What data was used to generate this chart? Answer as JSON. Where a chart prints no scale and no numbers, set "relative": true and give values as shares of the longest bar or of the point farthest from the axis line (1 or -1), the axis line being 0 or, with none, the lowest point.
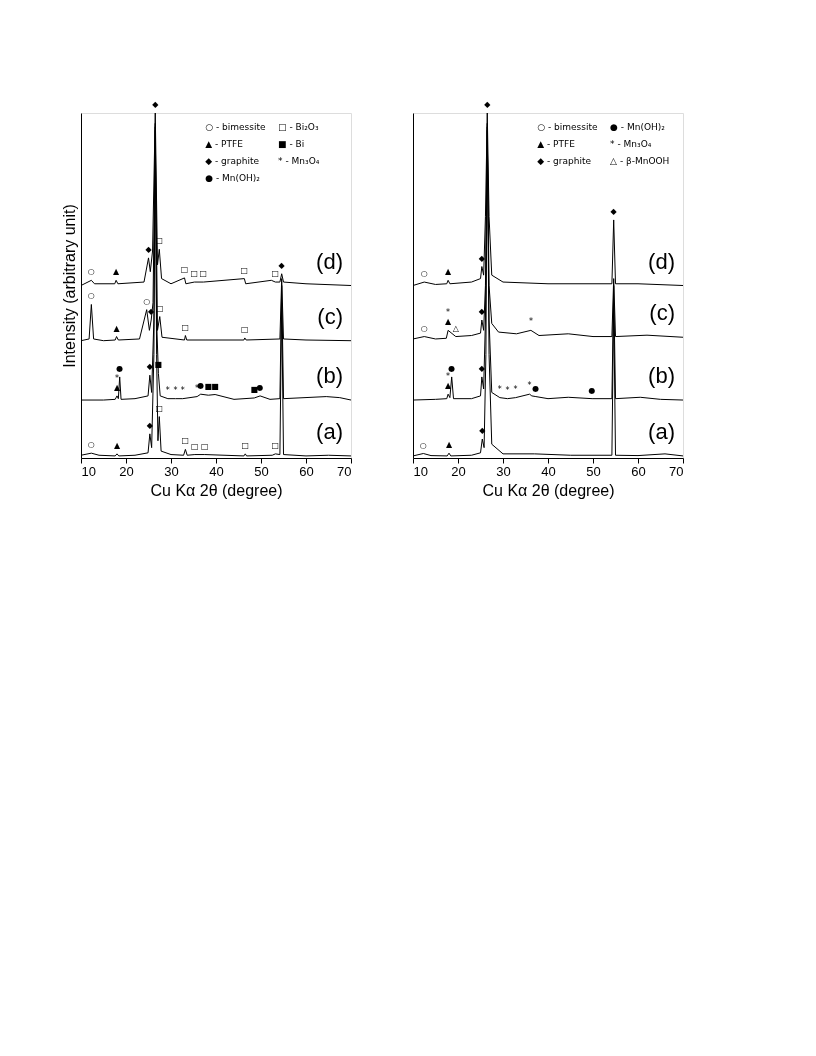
{
  "chart_data": [
    {
      "type": "line",
      "xlabel": "Cu Kα 2θ (degree)",
      "ylabel": "Intensity (arbitrary unit)",
      "relative": true,
      "xlim": [
        10,
        70
      ],
      "xticks": [
        10,
        20,
        30,
        40,
        50,
        60,
        70
      ],
      "tick_labels": "x",
      "grid": false,
      "legend": false,
      "series": [
        {
          "name": "(a)",
          "color": "#000000",
          "x": [
            10,
            12.3,
            14,
            17.6,
            18.0,
            18.4,
            22,
            24.9,
            25.3,
            25.7,
            26.2,
            26.5,
            26.8,
            27.1,
            27.4,
            27.8,
            30,
            32.8,
            33.2,
            33.6,
            35.3,
            37.5,
            46.2,
            46.5,
            46.8,
            52.5,
            53.2,
            54.2,
            54.6,
            55,
            60,
            65,
            70
          ],
          "values": [
            0.008,
            0.014,
            0.008,
            0.006,
            0.012,
            0.006,
            0.008,
            0.015,
            0.07,
            0.03,
            0.3,
            0.97,
            0.3,
            0.05,
            0.12,
            0.02,
            0.01,
            0.008,
            0.025,
            0.008,
            0.01,
            0.01,
            0.006,
            0.012,
            0.006,
            0.008,
            0.012,
            0.01,
            0.45,
            0.01,
            0.006,
            0.008,
            0.006
          ]
        },
        {
          "name": "(b)",
          "color": "#000000",
          "x": [
            10,
            15,
            17.6,
            18.0,
            18.3,
            18.6,
            18.9,
            22,
            24.9,
            25.3,
            25.7,
            26.2,
            26.5,
            26.8,
            27.2,
            27.6,
            29.3,
            31,
            32.6,
            35.8,
            36.6,
            38.3,
            39.8,
            44,
            48.5,
            49.8,
            52,
            54.2,
            54.6,
            55,
            64.5,
            67.5,
            70
          ],
          "values": [
            0.168,
            0.168,
            0.17,
            0.18,
            0.172,
            0.235,
            0.17,
            0.172,
            0.18,
            0.24,
            0.19,
            0.4,
            0.96,
            0.4,
            0.245,
            0.18,
            0.172,
            0.172,
            0.172,
            0.178,
            0.185,
            0.182,
            0.184,
            0.17,
            0.174,
            0.18,
            0.17,
            0.172,
            0.5,
            0.172,
            0.178,
            0.175,
            0.168
          ]
        },
        {
          "name": "(c)",
          "color": "#000000",
          "x": [
            10,
            11.8,
            12.3,
            12.8,
            15,
            17.6,
            17.9,
            18.3,
            23,
            24.6,
            25.2,
            25.6,
            26.0,
            26.5,
            27.0,
            27.5,
            28,
            33,
            33.2,
            33.5,
            46.2,
            46.4,
            46.7,
            54.2,
            54.6,
            55,
            60,
            70
          ],
          "values": [
            0.34,
            0.345,
            0.445,
            0.345,
            0.34,
            0.342,
            0.352,
            0.342,
            0.345,
            0.43,
            0.37,
            0.4,
            0.45,
            0.95,
            0.37,
            0.41,
            0.35,
            0.342,
            0.355,
            0.342,
            0.342,
            0.348,
            0.342,
            0.345,
            0.52,
            0.345,
            0.342,
            0.34
          ]
        },
        {
          "name": "(d)",
          "color": "#000000",
          "x": [
            10,
            12.3,
            13,
            17.5,
            17.8,
            18.2,
            24,
            25.0,
            25.4,
            25.9,
            26.5,
            27.0,
            27.4,
            27.9,
            30,
            33.0,
            33.3,
            35.2,
            37.2,
            46.3,
            46.6,
            52.3,
            53.2,
            54.2,
            54.6,
            55,
            60,
            70
          ],
          "values": [
            0.5,
            0.515,
            0.505,
            0.505,
            0.515,
            0.505,
            0.51,
            0.58,
            0.54,
            0.6,
            1.0,
            0.56,
            0.605,
            0.52,
            0.505,
            0.522,
            0.505,
            0.51,
            0.51,
            0.52,
            0.505,
            0.515,
            0.51,
            0.51,
            0.534,
            0.51,
            0.505,
            0.5
          ]
        }
      ],
      "annotations": [
        "○ - bimessite",
        "□ - Bi₂O₃",
        "▲ - PTFE",
        "■ - Bi",
        "◆ - graphite",
        "* - Mn₃O₄",
        "● - Mn(OH)₂",
        {
          "text": "◆",
          "x": 26.5,
          "y": 1.0
        },
        {
          "text": "○",
          "x": 12.3,
          "y": 0.515
        },
        {
          "text": "▲",
          "x": 17.8,
          "y": 0.515
        },
        {
          "text": "◆",
          "x": 25.0,
          "y": 0.58
        },
        {
          "text": "□",
          "x": 27.4,
          "y": 0.605
        },
        {
          "text": "□",
          "x": 33.0,
          "y": 0.522
        },
        {
          "text": "□",
          "x": 35.2,
          "y": 0.51
        },
        {
          "text": "□",
          "x": 37.2,
          "y": 0.51
        },
        {
          "text": "□",
          "x": 46.3,
          "y": 0.52
        },
        {
          "text": "□",
          "x": 53.2,
          "y": 0.51
        },
        {
          "text": "◆",
          "x": 54.6,
          "y": 0.534
        },
        {
          "text": "○",
          "x": 12.3,
          "y": 0.445
        },
        {
          "text": "▲",
          "x": 17.9,
          "y": 0.352
        },
        {
          "text": "○",
          "x": 24.6,
          "y": 0.43
        },
        {
          "text": "◆",
          "x": 25.6,
          "y": 0.4
        },
        {
          "text": "□",
          "x": 27.5,
          "y": 0.41
        },
        {
          "text": "□",
          "x": 33.2,
          "y": 0.355
        },
        {
          "text": "□",
          "x": 46.4,
          "y": 0.348
        },
        {
          "text": "▲",
          "x": 18.0,
          "y": 0.18
        },
        {
          "text": "*",
          "x": 18.0,
          "y": 0.18
        },
        {
          "text": "●",
          "x": 18.6,
          "y": 0.235
        },
        {
          "text": "◆",
          "x": 25.3,
          "y": 0.24
        },
        {
          "text": "■",
          "x": 27.2,
          "y": 0.245
        },
        {
          "text": "*",
          "x": 29.3,
          "y": 0.172
        },
        {
          "text": "*",
          "x": 31,
          "y": 0.172
        },
        {
          "text": "*",
          "x": 32.6,
          "y": 0.172
        },
        {
          "text": "*",
          "x": 35.8,
          "y": 0.178
        },
        {
          "text": "●",
          "x": 36.6,
          "y": 0.185
        },
        {
          "text": "■",
          "x": 38.3,
          "y": 0.182
        },
        {
          "text": "■",
          "x": 39.8,
          "y": 0.184
        },
        {
          "text": "■",
          "x": 48.5,
          "y": 0.174
        },
        {
          "text": "●",
          "x": 49.8,
          "y": 0.18
        },
        {
          "text": "○",
          "x": 12.3,
          "y": 0.014
        },
        {
          "text": "▲",
          "x": 18.0,
          "y": 0.012
        },
        {
          "text": "◆",
          "x": 25.3,
          "y": 0.07
        },
        {
          "text": "□",
          "x": 27.4,
          "y": 0.12
        },
        {
          "text": "□",
          "x": 33.2,
          "y": 0.025
        },
        {
          "text": "□",
          "x": 35.3,
          "y": 0.01
        },
        {
          "text": "□",
          "x": 37.5,
          "y": 0.01
        },
        {
          "text": "□",
          "x": 46.5,
          "y": 0.012
        },
        {
          "text": "□",
          "x": 53.2,
          "y": 0.012
        }
      ]
    },
    {
      "type": "line",
      "xlabel": "Cu Kα 2θ (degree)",
      "relative": true,
      "xlim": [
        10,
        70
      ],
      "xticks": [
        10,
        20,
        30,
        40,
        50,
        60,
        70
      ],
      "tick_labels": "x",
      "grid": false,
      "legend": false,
      "series": [
        {
          "name": "(a)",
          "color": "#000000",
          "x": [
            10,
            12.3,
            14,
            17.6,
            18.0,
            18.4,
            23,
            25.0,
            25.4,
            25.8,
            26.2,
            26.5,
            26.9,
            27.5,
            30,
            37,
            45,
            54.2,
            54.6,
            55,
            60,
            66,
            70
          ],
          "values": [
            0.006,
            0.013,
            0.007,
            0.006,
            0.014,
            0.006,
            0.008,
            0.015,
            0.055,
            0.03,
            0.3,
            0.97,
            0.3,
            0.04,
            0.012,
            0.012,
            0.008,
            0.008,
            0.45,
            0.008,
            0.007,
            0.012,
            0.006
          ]
        },
        {
          "name": "(b)",
          "color": "#000000",
          "x": [
            10,
            15,
            17.5,
            17.8,
            18.2,
            18.6,
            19.0,
            23,
            25.0,
            25.3,
            25.7,
            26.1,
            26.5,
            26.9,
            27.5,
            29.3,
            31,
            32.8,
            35.9,
            36.4,
            37.3,
            40,
            44.5,
            49.8,
            54.2,
            54.6,
            55,
            60.5,
            65,
            70
          ],
          "values": [
            0.168,
            0.17,
            0.172,
            0.185,
            0.175,
            0.235,
            0.172,
            0.172,
            0.18,
            0.235,
            0.2,
            0.4,
            0.96,
            0.4,
            0.19,
            0.175,
            0.172,
            0.175,
            0.185,
            0.18,
            0.178,
            0.172,
            0.176,
            0.172,
            0.172,
            0.5,
            0.172,
            0.176,
            0.17,
            0.168
          ]
        },
        {
          "name": "(c)",
          "color": "#000000",
          "x": [
            10,
            12.5,
            15,
            17.4,
            17.8,
            19.5,
            23,
            25.0,
            25.3,
            25.7,
            26.1,
            26.5,
            26.9,
            27.5,
            29,
            33,
            36.2,
            38,
            44.5,
            50,
            54.2,
            54.6,
            55,
            62,
            70
          ],
          "values": [
            0.345,
            0.352,
            0.345,
            0.347,
            0.37,
            0.352,
            0.355,
            0.362,
            0.4,
            0.37,
            0.5,
            0.95,
            0.5,
            0.39,
            0.365,
            0.36,
            0.37,
            0.355,
            0.36,
            0.352,
            0.352,
            0.52,
            0.352,
            0.356,
            0.35
          ]
        },
        {
          "name": "(d)",
          "color": "#000000",
          "x": [
            10,
            12.5,
            15,
            17.5,
            17.8,
            18.2,
            23,
            25.0,
            25.3,
            25.7,
            26.1,
            26.5,
            26.9,
            27.5,
            30,
            40,
            54.2,
            54.6,
            55,
            60,
            70
          ],
          "values": [
            0.5,
            0.51,
            0.503,
            0.505,
            0.515,
            0.505,
            0.51,
            0.52,
            0.555,
            0.53,
            0.7,
            1.0,
            0.7,
            0.53,
            0.51,
            0.505,
            0.505,
            0.69,
            0.505,
            0.505,
            0.5
          ]
        }
      ],
      "annotations": [
        "○ - bimessite",
        "● - Mn(OH)₂",
        "▲ - PTFE",
        "* - Mn₃O₄",
        "◆ - graphite",
        "△ - β-MnOOH",
        {
          "text": "◆",
          "x": 26.5,
          "y": 1.0
        },
        {
          "text": "○",
          "x": 12.5,
          "y": 0.51
        },
        {
          "text": "▲",
          "x": 17.8,
          "y": 0.515
        },
        {
          "text": "◆",
          "x": 25.3,
          "y": 0.555
        },
        {
          "text": "◆",
          "x": 54.6,
          "y": 0.69
        },
        {
          "text": "○",
          "x": 12.5,
          "y": 0.352
        },
        {
          "text": "▲",
          "x": 17.8,
          "y": 0.37
        },
        {
          "text": "*",
          "x": 17.8,
          "y": 0.37
        },
        {
          "text": "△",
          "x": 19.5,
          "y": 0.352
        },
        {
          "text": "◆",
          "x": 25.3,
          "y": 0.4
        },
        {
          "text": "*",
          "x": 36.2,
          "y": 0.37
        },
        {
          "text": "▲",
          "x": 17.8,
          "y": 0.185
        },
        {
          "text": "*",
          "x": 17.8,
          "y": 0.185
        },
        {
          "text": "●",
          "x": 18.6,
          "y": 0.235
        },
        {
          "text": "◆",
          "x": 25.3,
          "y": 0.235
        },
        {
          "text": "*",
          "x": 29.3,
          "y": 0.175
        },
        {
          "text": "*",
          "x": 31,
          "y": 0.172
        },
        {
          "text": "*",
          "x": 32.8,
          "y": 0.175
        },
        {
          "text": "*",
          "x": 35.9,
          "y": 0.185
        },
        {
          "text": "●",
          "x": 37.3,
          "y": 0.178
        },
        {
          "text": "●",
          "x": 49.8,
          "y": 0.172
        },
        {
          "text": "○",
          "x": 12.3,
          "y": 0.013
        },
        {
          "text": "▲",
          "x": 18.0,
          "y": 0.014
        },
        {
          "text": "◆",
          "x": 25.4,
          "y": 0.055
        }
      ]
    }
  ]
}
